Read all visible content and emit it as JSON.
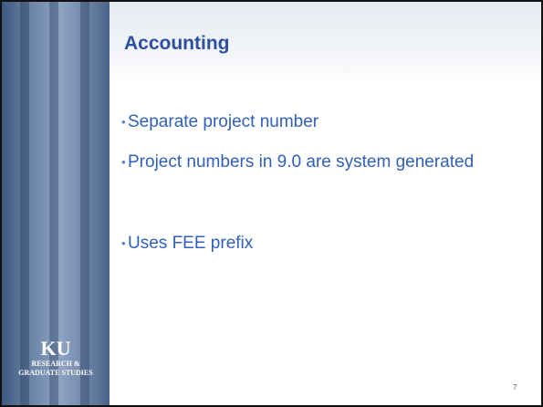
{
  "slide": {
    "title": "Accounting",
    "bullets": [
      "Separate project number",
      "Project numbers in 9.0 are system generated",
      "Uses FEE prefix"
    ],
    "page_number": "7"
  },
  "logo": {
    "mark": "KU",
    "line1": "RESEARCH &",
    "line2": "GRADUATE STUDIES"
  }
}
